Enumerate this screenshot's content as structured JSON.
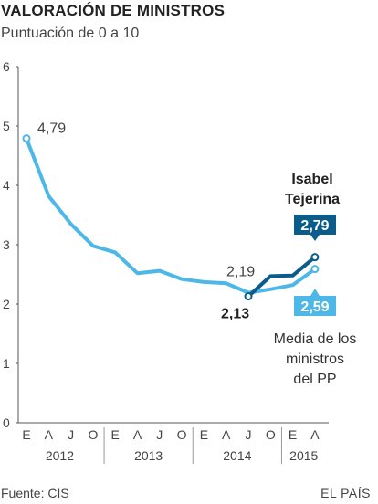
{
  "header": {
    "title": "VALORACIÓN DE MINISTROS",
    "subtitle": "Puntuación de 0 a 10"
  },
  "footer": {
    "source": "Fuente: CIS",
    "brand": "EL PAÍS"
  },
  "colors": {
    "light_blue": "#4db8e8",
    "dark_blue": "#0b5c8a",
    "axis": "#555555",
    "grid": "#d9d9d9"
  },
  "chart_data": {
    "type": "line",
    "title": "VALORACIÓN DE MINISTROS",
    "subtitle": "Puntuación de 0 a 10",
    "ylim": [
      0,
      6
    ],
    "yticks": [
      "0",
      "1",
      "2",
      "3",
      "4",
      "5",
      "6"
    ],
    "grid": false,
    "x_tick_labels": [
      "E",
      "A",
      "J",
      "O",
      "E",
      "A",
      "J",
      "O",
      "E",
      "A",
      "J",
      "O",
      "E",
      "A"
    ],
    "x_years": [
      "2012",
      "2013",
      "2014",
      "2015"
    ],
    "series": [
      {
        "name": "Media de los ministros del PP",
        "color": "#4db8e8",
        "x": [
          "2012-01",
          "2012-04",
          "2012-07",
          "2012-10",
          "2013-01",
          "2013-04",
          "2013-07",
          "2013-10",
          "2014-01",
          "2014-04",
          "2014-07",
          "2014-10",
          "2015-01",
          "2015-04"
        ],
        "values": [
          4.79,
          3.82,
          3.35,
          2.98,
          2.87,
          2.52,
          2.56,
          2.42,
          2.37,
          2.35,
          2.19,
          2.25,
          2.32,
          2.59
        ]
      },
      {
        "name": "Isabel Tejerina",
        "color": "#0b5c8a",
        "x": [
          "2014-07",
          "2014-10",
          "2015-01",
          "2015-04"
        ],
        "values": [
          2.13,
          2.47,
          2.48,
          2.79
        ]
      }
    ],
    "annotations": {
      "start_value": "4,79",
      "pp_july_2014": "2,19",
      "tejerina_july_2014": "2,13",
      "tejerina_name_line1": "Isabel",
      "tejerina_name_line2": "Tejerina",
      "tejerina_last": "2,79",
      "pp_last": "2,59",
      "pp_label_line1": "Media de los",
      "pp_label_line2": "ministros",
      "pp_label_line3": "del PP"
    }
  }
}
